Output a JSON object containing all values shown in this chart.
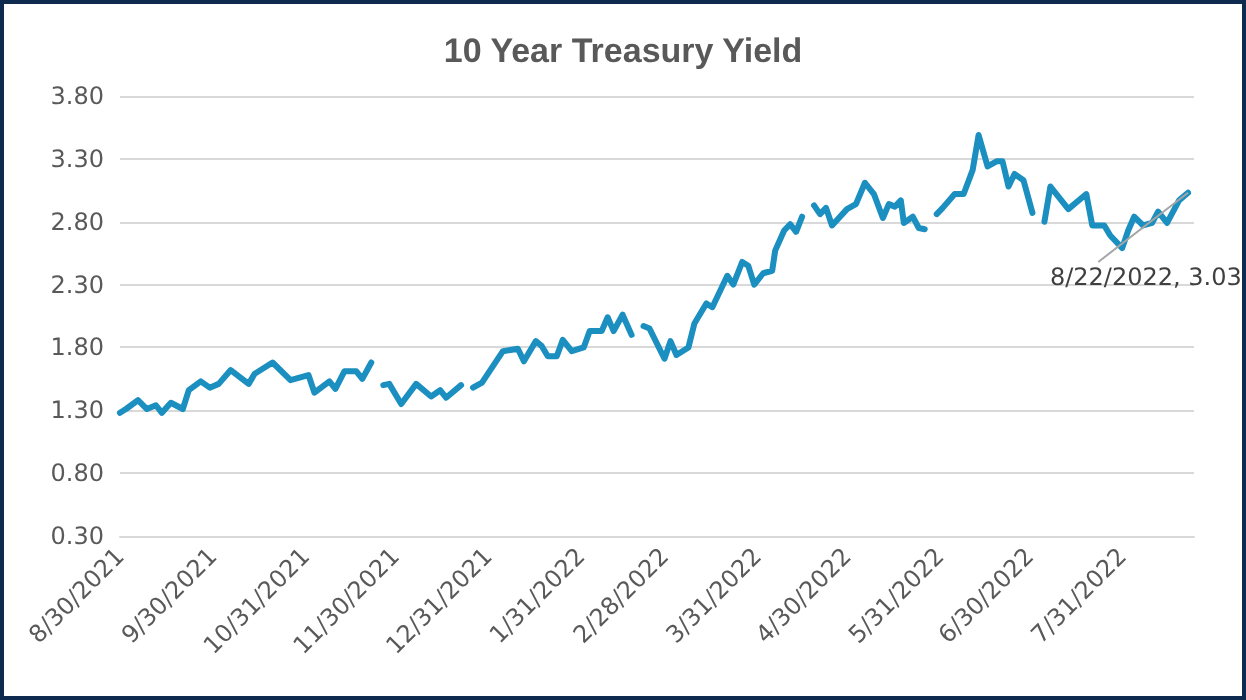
{
  "chart_data": {
    "type": "line",
    "title": "10 Year Treasury Yield",
    "x": [
      "2021-08-30",
      "2021-09-01",
      "2021-09-05",
      "2021-09-08",
      "2021-09-11",
      "2021-09-13",
      "2021-09-16",
      "2021-09-20",
      "2021-09-22",
      "2021-09-26",
      "2021-09-29",
      "2021-10-02",
      "2021-10-06",
      "2021-10-12",
      "2021-10-14",
      "2021-10-20",
      "2021-10-26",
      "2021-11-01",
      "2021-11-03",
      "2021-11-08",
      "2021-11-10",
      "2021-11-13",
      "2021-11-17",
      "2021-11-19",
      "2021-11-22",
      "2021-11-24",
      "2021-11-26",
      "2021-11-28",
      "2021-12-02",
      "2021-12-07",
      "2021-12-12",
      "2021-12-15",
      "2021-12-17",
      "2021-12-22",
      "2021-12-24",
      "2021-12-26",
      "2021-12-29",
      "2022-01-05",
      "2022-01-10",
      "2022-01-12",
      "2022-01-16",
      "2022-01-18",
      "2022-01-20",
      "2022-01-23",
      "2022-01-25",
      "2022-01-28",
      "2022-02-01",
      "2022-02-03",
      "2022-02-07",
      "2022-02-09",
      "2022-02-11",
      "2022-02-14",
      "2022-02-17",
      "2022-02-19",
      "2022-02-21",
      "2022-02-23",
      "2022-02-28",
      "2022-03-02",
      "2022-03-04",
      "2022-03-08",
      "2022-03-10",
      "2022-03-14",
      "2022-03-16",
      "2022-03-21",
      "2022-03-23",
      "2022-03-26",
      "2022-03-28",
      "2022-03-30",
      "2022-04-02",
      "2022-04-05",
      "2022-04-06",
      "2022-04-09",
      "2022-04-11",
      "2022-04-13",
      "2022-04-15",
      "2022-04-17",
      "2022-04-19",
      "2022-04-21",
      "2022-04-23",
      "2022-04-25",
      "2022-04-30",
      "2022-05-03",
      "2022-05-06",
      "2022-05-09",
      "2022-05-12",
      "2022-05-14",
      "2022-05-16",
      "2022-05-18",
      "2022-05-19",
      "2022-05-22",
      "2022-05-24",
      "2022-05-26",
      "2022-05-28",
      "2022-05-30",
      "2022-06-01",
      "2022-06-05",
      "2022-06-08",
      "2022-06-11",
      "2022-06-13",
      "2022-06-16",
      "2022-06-19",
      "2022-06-21",
      "2022-06-23",
      "2022-06-25",
      "2022-06-28",
      "2022-07-01",
      "2022-07-03",
      "2022-07-05",
      "2022-07-07",
      "2022-07-13",
      "2022-07-19",
      "2022-07-21",
      "2022-07-25",
      "2022-07-27",
      "2022-07-31",
      "2022-08-02",
      "2022-08-04",
      "2022-08-07",
      "2022-08-10",
      "2022-08-12",
      "2022-08-15",
      "2022-08-19",
      "2022-08-22"
    ],
    "series": [
      {
        "color": "#1b8fc0",
        "values": [
          1.28,
          1.31,
          1.38,
          1.31,
          1.34,
          1.28,
          1.36,
          1.31,
          1.46,
          1.53,
          1.48,
          1.51,
          1.62,
          1.51,
          1.59,
          1.68,
          1.54,
          1.58,
          1.44,
          1.53,
          1.47,
          1.61,
          1.61,
          1.55,
          1.68,
          null,
          1.5,
          1.51,
          1.35,
          1.51,
          1.41,
          1.46,
          1.4,
          1.5,
          null,
          1.48,
          1.52,
          1.77,
          1.79,
          1.69,
          1.85,
          1.81,
          1.73,
          1.73,
          1.86,
          1.77,
          1.8,
          1.93,
          1.93,
          2.04,
          1.93,
          2.06,
          1.9,
          null,
          1.97,
          1.95,
          1.71,
          1.85,
          1.74,
          1.8,
          1.99,
          2.15,
          2.12,
          2.37,
          2.3,
          2.48,
          2.45,
          2.3,
          2.39,
          2.41,
          2.57,
          2.73,
          2.78,
          2.72,
          2.84,
          null,
          2.93,
          2.86,
          2.91,
          2.77,
          2.9,
          2.94,
          3.11,
          3.02,
          2.83,
          2.94,
          2.92,
          2.97,
          2.79,
          2.84,
          2.75,
          2.74,
          null,
          2.86,
          2.91,
          3.02,
          3.02,
          3.21,
          3.49,
          3.24,
          3.28,
          3.28,
          3.08,
          3.18,
          3.13,
          2.87,
          null,
          2.8,
          3.08,
          2.9,
          3.02,
          2.77,
          2.77,
          2.69,
          2.59,
          2.73,
          2.84,
          2.77,
          2.79,
          2.88,
          2.79,
          2.97,
          3.03
        ]
      }
    ],
    "xlim": [
      "2021-08-30",
      "2022-08-24"
    ],
    "xticks": [
      {
        "value": "2021-08-30",
        "label": "8/30/2021"
      },
      {
        "value": "2021-09-30",
        "label": "9/30/2021"
      },
      {
        "value": "2021-10-31",
        "label": "10/31/2021"
      },
      {
        "value": "2021-11-30",
        "label": "11/30/2021"
      },
      {
        "value": "2021-12-31",
        "label": "12/31/2021"
      },
      {
        "value": "2022-01-31",
        "label": "1/31/2022"
      },
      {
        "value": "2022-02-28",
        "label": "2/28/2022"
      },
      {
        "value": "2022-03-31",
        "label": "3/31/2022"
      },
      {
        "value": "2022-04-30",
        "label": "4/30/2022"
      },
      {
        "value": "2022-05-31",
        "label": "5/31/2022"
      },
      {
        "value": "2022-06-30",
        "label": "6/30/2022"
      },
      {
        "value": "2022-07-31",
        "label": "7/31/2022"
      }
    ],
    "ylim": [
      0.3,
      3.8
    ],
    "yticks": [
      {
        "value": 0.3,
        "label": "0.30"
      },
      {
        "value": 0.8,
        "label": "0.80"
      },
      {
        "value": 1.3,
        "label": "1.30"
      },
      {
        "value": 1.8,
        "label": "1.80"
      },
      {
        "value": 2.3,
        "label": "2.30"
      },
      {
        "value": 2.8,
        "label": "2.80"
      },
      {
        "value": 3.3,
        "label": "3.30"
      },
      {
        "value": 3.8,
        "label": "3.80"
      }
    ],
    "annotations": [
      {
        "text": "8/22/2022, 3.03",
        "x": "2022-08-22",
        "y": 3.03
      }
    ],
    "grid": "y",
    "marker": "none",
    "line_style": "solid"
  }
}
